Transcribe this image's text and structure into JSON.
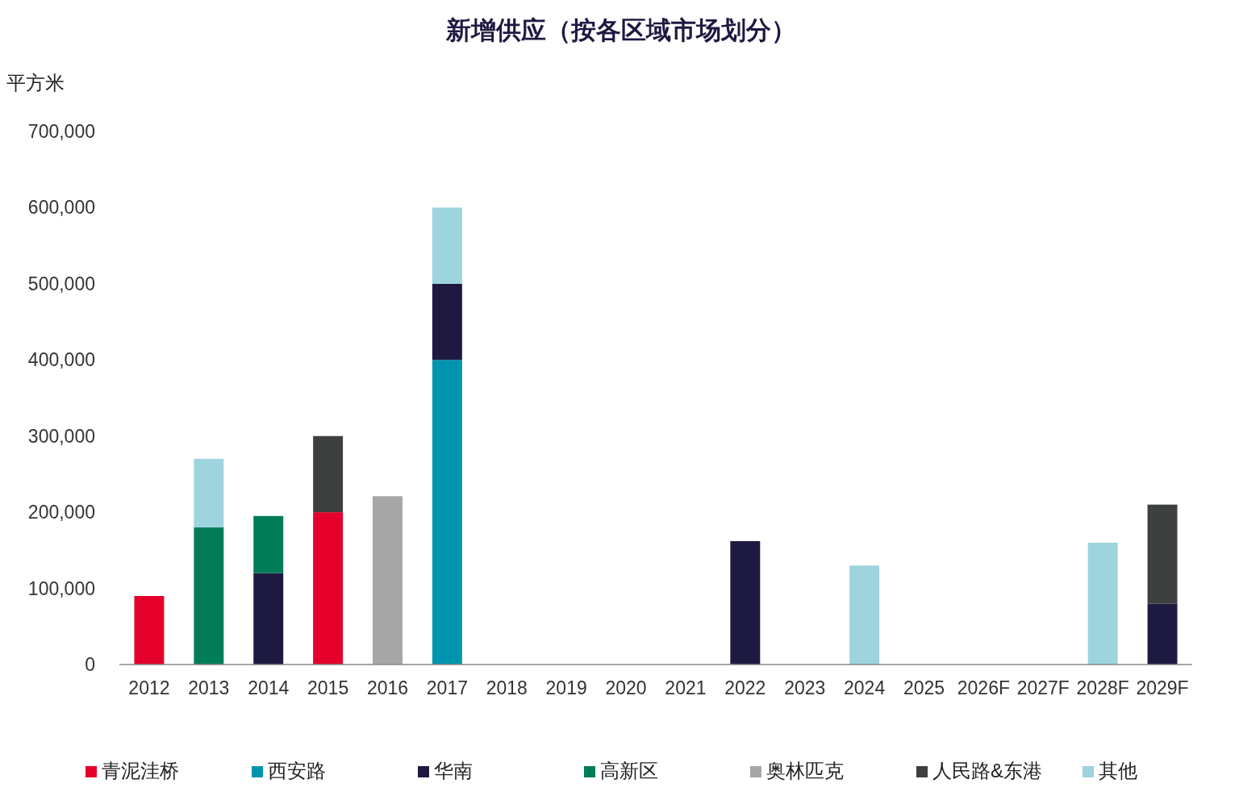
{
  "chart_data": {
    "type": "bar",
    "title": "新增供应（按各区域市场划分）",
    "ylabel": "平方米",
    "stacked": true,
    "legend": "bottom",
    "grid": false,
    "categories": [
      "2012",
      "2013",
      "2014",
      "2015",
      "2016",
      "2017",
      "2018",
      "2019",
      "2020",
      "2021",
      "2022",
      "2023",
      "2024",
      "2025",
      "2026F",
      "2027F",
      "2028F",
      "2029F"
    ],
    "ylim": [
      0,
      700000
    ],
    "yticks": [
      {
        "value": 0,
        "label": "0"
      },
      {
        "value": 100000,
        "label": "100,000"
      },
      {
        "value": 200000,
        "label": "200,000"
      },
      {
        "value": 300000,
        "label": "300,000"
      },
      {
        "value": 400000,
        "label": "400,000"
      },
      {
        "value": 500000,
        "label": "500,000"
      },
      {
        "value": 600000,
        "label": "600,000"
      },
      {
        "value": 700000,
        "label": "700,000"
      }
    ],
    "series": [
      {
        "name": "青泥洼桥",
        "color": "#e4002b",
        "values": [
          90000,
          null,
          null,
          200000,
          null,
          null,
          null,
          null,
          null,
          null,
          null,
          null,
          null,
          null,
          null,
          null,
          null,
          null
        ]
      },
      {
        "name": "西安路",
        "color": "#0095ae",
        "values": [
          null,
          null,
          null,
          null,
          null,
          400000,
          null,
          null,
          null,
          null,
          null,
          null,
          null,
          null,
          null,
          null,
          null,
          null
        ]
      },
      {
        "name": "华南",
        "color": "#1e1941",
        "values": [
          null,
          null,
          120000,
          null,
          null,
          100000,
          null,
          null,
          null,
          null,
          162000,
          null,
          null,
          null,
          null,
          null,
          null,
          80000
        ]
      },
      {
        "name": "高新区",
        "color": "#007d57",
        "values": [
          null,
          180000,
          75000,
          null,
          null,
          null,
          null,
          null,
          null,
          null,
          null,
          null,
          null,
          null,
          null,
          null,
          null,
          null
        ]
      },
      {
        "name": "奥林匹克",
        "color": "#a6a6a6",
        "values": [
          null,
          null,
          null,
          null,
          221000,
          null,
          null,
          null,
          null,
          null,
          null,
          null,
          null,
          null,
          null,
          null,
          null,
          null
        ]
      },
      {
        "name": "人民路&东港",
        "color": "#3e4040",
        "values": [
          null,
          null,
          null,
          100000,
          null,
          null,
          null,
          null,
          null,
          null,
          null,
          null,
          null,
          null,
          null,
          null,
          null,
          130000
        ]
      },
      {
        "name": "其他",
        "color": "#9dd4de",
        "values": [
          null,
          90000,
          null,
          null,
          null,
          100000,
          null,
          null,
          null,
          null,
          null,
          null,
          130000,
          null,
          null,
          null,
          160000,
          null
        ]
      }
    ]
  }
}
